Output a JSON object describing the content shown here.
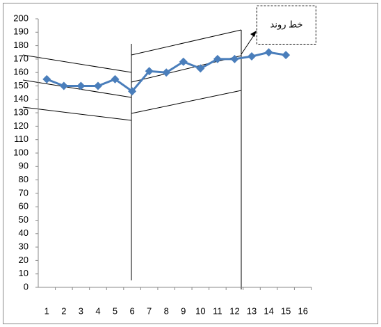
{
  "chart_data": {
    "type": "line",
    "annotation": "خط روند",
    "categories": [
      "1",
      "2",
      "3",
      "4",
      "5",
      "6",
      "7",
      "8",
      "9",
      "10",
      "11",
      "12",
      "13",
      "14",
      "15",
      "16"
    ],
    "series": [
      {
        "color": "#4a7ebb",
        "values": [
          155,
          150,
          150,
          150,
          155,
          146,
          161,
          160,
          168,
          163,
          170,
          170,
          172,
          175,
          173,
          null
        ]
      }
    ],
    "ylim": [
      0,
      200
    ],
    "yticks": [
      0,
      10,
      20,
      30,
      40,
      50,
      60,
      70,
      80,
      90,
      100,
      110,
      120,
      130,
      140,
      150,
      160,
      170,
      180,
      190,
      200
    ]
  }
}
